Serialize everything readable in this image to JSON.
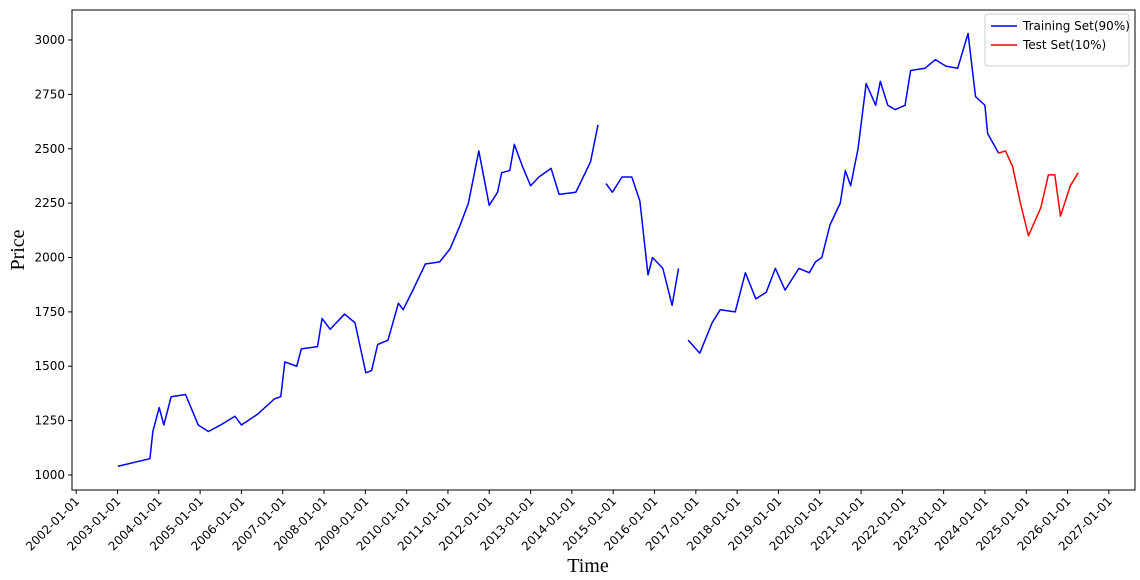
{
  "chart_data": {
    "type": "line",
    "x_label": "Time",
    "y_label": "Price",
    "xlim": [
      "2001-11-25",
      "2027-08-20"
    ],
    "xticks": [
      "2002-01-01",
      "2003-01-01",
      "2004-01-01",
      "2005-01-01",
      "2006-01-01",
      "2007-01-01",
      "2008-01-01",
      "2009-01-01",
      "2010-01-01",
      "2011-01-01",
      "2012-01-01",
      "2013-01-01",
      "2014-01-01",
      "2015-01-01",
      "2016-01-01",
      "2017-01-01",
      "2018-01-01",
      "2019-01-01",
      "2020-01-01",
      "2021-01-01",
      "2022-01-01",
      "2023-01-01",
      "2024-01-01",
      "2025-01-01",
      "2026-01-01",
      "2027-01-01"
    ],
    "ylim": [
      931,
      3138
    ],
    "yticks": [
      1000,
      1250,
      1500,
      1750,
      2000,
      2250,
      2500,
      2750,
      3000
    ],
    "grid": false,
    "legend": "upper right",
    "series": [
      {
        "name": "Training Set(90%)",
        "color": "#0000ff",
        "x": [
          "2003-01-05",
          "2003-06-15",
          "2003-10-15",
          "2003-11-10",
          "2004-01-05",
          "2004-02-15",
          "2004-04-20",
          "2004-08-25",
          "2004-12-15",
          "2005-03-15",
          "2005-07-01",
          "2005-11-05",
          "2006-01-01",
          "2006-05-25",
          "2006-10-20",
          "2006-12-15",
          "2007-01-20",
          "2007-05-05",
          "2007-06-15",
          "2007-11-05",
          "2007-12-15",
          "2008-02-25",
          "2008-07-01",
          "2008-10-01",
          "2009-01-05",
          "2009-02-25",
          "2009-04-20",
          "2009-07-20",
          "2009-10-20",
          "2009-12-01",
          "2010-02-25",
          "2010-06-15",
          "2010-10-20",
          "2011-01-20",
          "2011-04-20",
          "2011-07-01",
          "2011-10-01",
          "2012-01-01",
          "2012-03-15",
          "2012-04-20",
          "2012-07-01",
          "2012-08-10",
          "2012-10-20",
          "2013-01-01",
          "2013-03-15",
          "2013-07-01",
          "2013-09-10",
          "2014-02-05",
          "2014-06-15",
          "2014-08-20",
          "2014-09-20",
          "2014-10-30",
          "2014-12-25",
          "2015-03-20",
          "2015-06-15",
          "2015-08-25",
          "2015-11-05",
          "2015-12-15",
          "2016-03-15",
          "2016-06-05",
          "2016-08-01",
          "2016-09-05",
          "2016-10-25",
          "2017-02-05",
          "2017-05-25",
          "2017-08-05",
          "2017-12-15",
          "2018-03-15",
          "2018-06-15",
          "2018-09-15",
          "2018-12-05",
          "2019-03-01",
          "2019-07-01",
          "2019-10-01",
          "2019-11-25",
          "2020-01-20",
          "2020-04-01",
          "2020-07-01",
          "2020-08-15",
          "2020-10-01",
          "2020-12-05",
          "2021-02-15",
          "2021-05-10",
          "2021-06-20",
          "2021-08-25",
          "2021-10-30",
          "2022-01-25",
          "2022-03-15",
          "2022-07-20",
          "2022-10-20",
          "2023-01-20",
          "2023-05-05",
          "2023-08-05",
          "2023-10-10",
          "2024-01-01",
          "2024-01-25",
          "2024-05-01"
        ],
        "values": [
          1040,
          1060,
          1075,
          1200,
          1310,
          1230,
          1360,
          1370,
          1230,
          1200,
          1230,
          1270,
          1230,
          1280,
          1350,
          1360,
          1520,
          1500,
          1580,
          1590,
          1720,
          1670,
          1740,
          1700,
          1470,
          1480,
          1600,
          1620,
          1790,
          1760,
          1850,
          1970,
          1980,
          2040,
          2150,
          2250,
          2490,
          2240,
          2300,
          2390,
          2400,
          2520,
          2420,
          2330,
          2370,
          2410,
          2290,
          2300,
          2440,
          2610,
          null,
          2340,
          2300,
          2370,
          2370,
          2260,
          1920,
          2000,
          1950,
          1780,
          1950,
          null,
          1620,
          1560,
          1700,
          1760,
          1750,
          1930,
          1810,
          1840,
          1950,
          1850,
          1950,
          1930,
          1980,
          2000,
          2150,
          2250,
          2400,
          2330,
          2500,
          2800,
          2700,
          2810,
          2700,
          2680,
          2700,
          2860,
          2870,
          2910,
          2880,
          2870,
          3030,
          2740,
          2700,
          2570,
          2480
        ]
      },
      {
        "name": "Test Set(10%)",
        "color": "#ff0000",
        "x": [
          "2024-05-01",
          "2024-07-01",
          "2024-09-01",
          "2024-11-10",
          "2025-01-20",
          "2025-05-10",
          "2025-07-15",
          "2025-09-10",
          "2025-10-30",
          "2026-01-25",
          "2026-04-05"
        ],
        "values": [
          2480,
          2490,
          2420,
          2250,
          2100,
          2230,
          2380,
          2380,
          2190,
          2330,
          2390
        ]
      }
    ]
  }
}
